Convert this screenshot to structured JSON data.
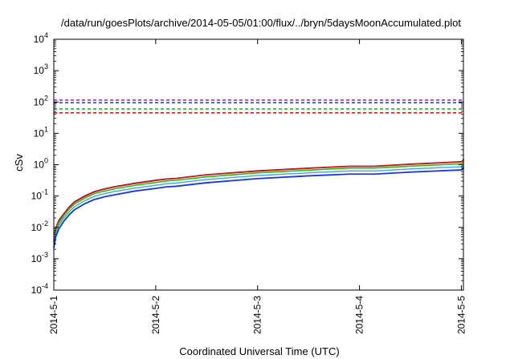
{
  "chart_data": {
    "type": "line",
    "title": "/data/run/goesPlots/archive/2014-05-05/01:00/flux/../bryn/5daysMoonAccumulated.plot",
    "xlabel": "Coordinated Universal Time (UTC)",
    "ylabel": "cSv",
    "y_scale": "log",
    "ylim": [
      0.0001,
      10000
    ],
    "xlim": [
      0,
      4.02
    ],
    "x_ticks": [
      {
        "value": 1,
        "label": "2014-5-1"
      },
      {
        "value": 2,
        "label": "2014-5-2"
      },
      {
        "value": 3,
        "label": "2014-5-3"
      },
      {
        "value": 4,
        "label": "2014-5-4"
      },
      {
        "value": 5,
        "label": "2014-5-5"
      }
    ],
    "y_ticks": [
      {
        "value": 0.0001,
        "base": "10",
        "exp": "-4"
      },
      {
        "value": 0.001,
        "base": "10",
        "exp": "-3"
      },
      {
        "value": 0.01,
        "base": "10",
        "exp": "-2"
      },
      {
        "value": 0.1,
        "base": "10",
        "exp": "-1"
      },
      {
        "value": 1,
        "base": "10",
        "exp": "0"
      },
      {
        "value": 10,
        "base": "10",
        "exp": "1"
      },
      {
        "value": 100,
        "base": "10",
        "exp": "2"
      },
      {
        "value": 1000,
        "base": "10",
        "exp": "3"
      },
      {
        "value": 10000,
        "base": "10",
        "exp": "4"
      }
    ],
    "grid": false,
    "legend": "none",
    "thresholds": [
      {
        "value": 115,
        "color": "#9a1fc4"
      },
      {
        "value": 95,
        "color": "#1a35e0"
      },
      {
        "value": 60,
        "color": "#18c41a"
      },
      {
        "value": 45,
        "color": "#e01818"
      }
    ],
    "x": [
      0,
      0.02,
      0.05,
      0.1,
      0.15,
      0.2,
      0.3,
      0.4,
      0.5,
      0.6,
      0.8,
      1.0,
      1.1,
      1.2,
      1.5,
      2.0,
      2.5,
      2.9,
      3.15,
      3.5,
      4.0,
      4.5,
      4.99
    ],
    "series": [
      {
        "color": "#8b0000",
        "width": 1.4,
        "values": [
          0.0045,
          0.01,
          0.017,
          0.028,
          0.045,
          0.065,
          0.1,
          0.14,
          0.17,
          0.2,
          0.26,
          0.32,
          0.35,
          0.37,
          0.48,
          0.64,
          0.78,
          0.9,
          0.9,
          1.05,
          1.25,
          1.42,
          1.55
        ]
      },
      {
        "color": "#e01818",
        "width": 1.4,
        "values": [
          0.0042,
          0.0095,
          0.016,
          0.027,
          0.043,
          0.062,
          0.096,
          0.135,
          0.165,
          0.195,
          0.25,
          0.31,
          0.34,
          0.36,
          0.47,
          0.62,
          0.76,
          0.88,
          0.88,
          1.02,
          1.22,
          1.38,
          1.5
        ]
      },
      {
        "color": "#18c41a",
        "width": 1.6,
        "values": [
          0.0036,
          0.0082,
          0.014,
          0.024,
          0.038,
          0.055,
          0.085,
          0.12,
          0.145,
          0.17,
          0.22,
          0.27,
          0.3,
          0.32,
          0.41,
          0.55,
          0.67,
          0.78,
          0.78,
          0.9,
          1.06,
          1.2,
          1.32
        ]
      },
      {
        "color": "#3aa6e8",
        "width": 1.4,
        "values": [
          0.003,
          0.0068,
          0.0115,
          0.02,
          0.031,
          0.045,
          0.07,
          0.098,
          0.12,
          0.14,
          0.18,
          0.22,
          0.245,
          0.26,
          0.335,
          0.45,
          0.55,
          0.63,
          0.63,
          0.73,
          0.86,
          0.98,
          1.08
        ]
      },
      {
        "color": "#1a35e0",
        "width": 1.8,
        "values": [
          0.0022,
          0.0052,
          0.009,
          0.016,
          0.025,
          0.036,
          0.056,
          0.078,
          0.095,
          0.11,
          0.145,
          0.175,
          0.195,
          0.205,
          0.265,
          0.36,
          0.44,
          0.5,
          0.5,
          0.58,
          0.68,
          0.77,
          0.84
        ]
      }
    ]
  }
}
